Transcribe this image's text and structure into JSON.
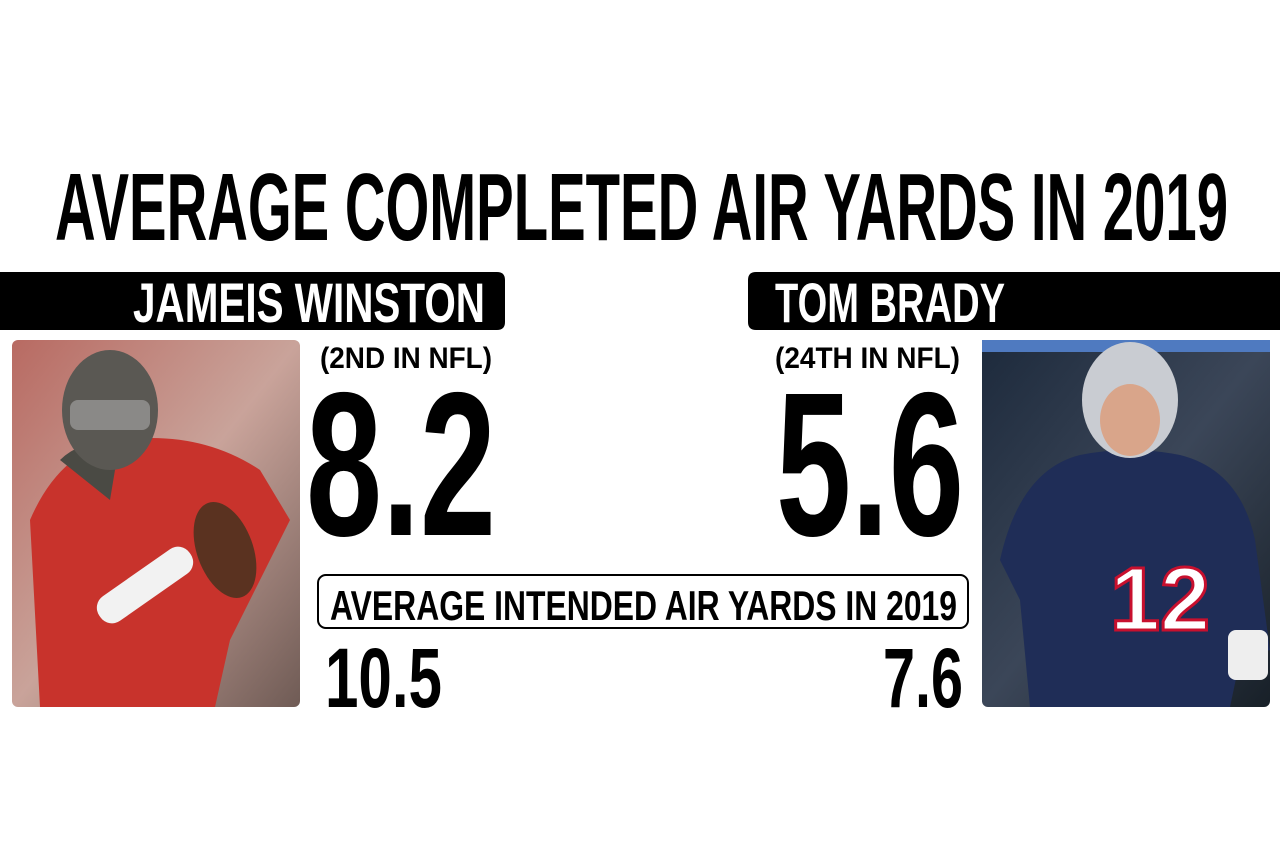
{
  "title": "AVERAGE COMPLETED AIR YARDS IN 2019",
  "players": [
    {
      "name": "JAMEIS WINSTON",
      "rank": "(2ND IN NFL)",
      "completed_air_yards": "8.2",
      "intended_air_yards": "10.5"
    },
    {
      "name": "TOM BRADY",
      "rank": "(24TH IN NFL)",
      "completed_air_yards": "5.6",
      "intended_air_yards": "7.6"
    }
  ],
  "intended_label": "AVERAGE INTENDED AIR YARDS IN 2019"
}
